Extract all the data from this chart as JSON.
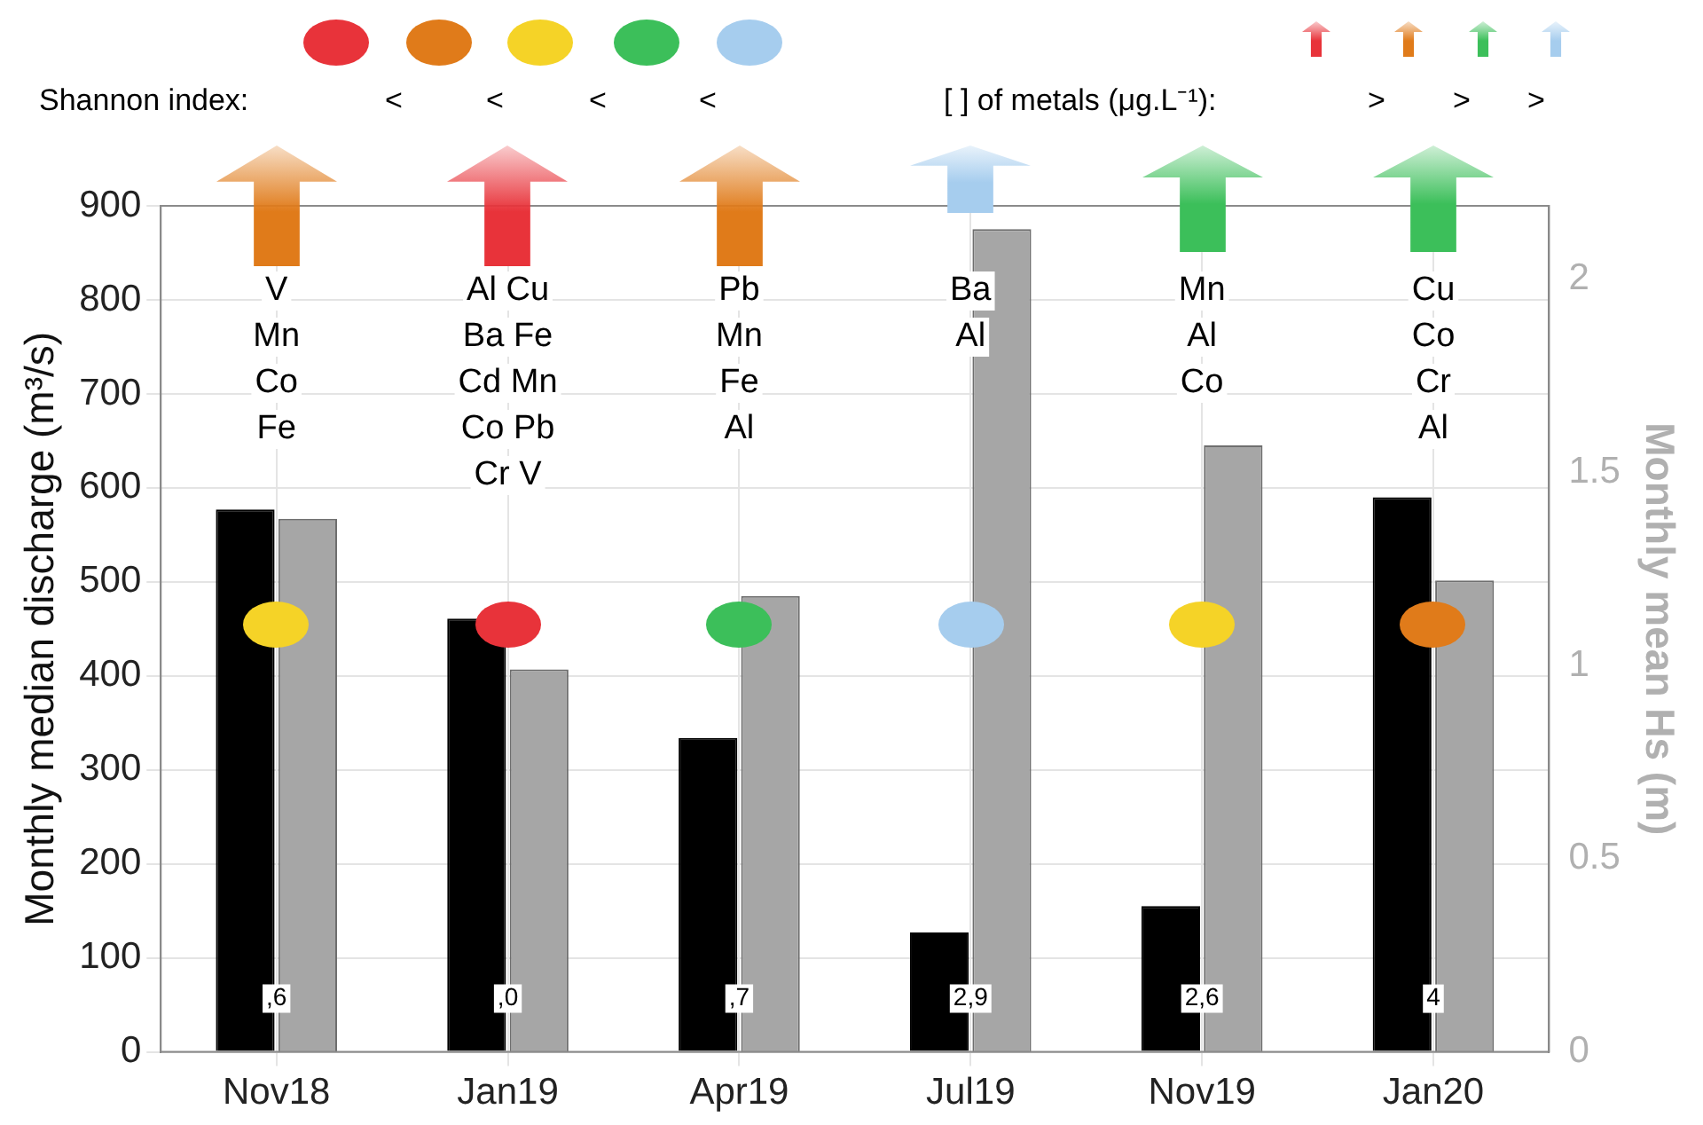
{
  "chart_data": {
    "type": "bar",
    "categories": [
      "Nov18",
      "Jan19",
      "Apr19",
      "Jul19",
      "Nov19",
      "Jan20"
    ],
    "series": [
      {
        "color": "#000000",
        "values": [
          577,
          461,
          334,
          127,
          155,
          590
        ]
      },
      {
        "color": "#a6a6a6",
        "axis": "y2",
        "values": [
          1.38,
          0.99,
          1.18,
          2.13,
          1.57,
          1.22
        ]
      }
    ],
    "ylabel": "Monthly median discharge (m³/s)",
    "y2label": "Monthly mean Hs (m)",
    "ylim": [
      0,
      900
    ],
    "yticks": [
      0,
      100,
      200,
      300,
      400,
      500,
      600,
      700,
      800,
      900
    ],
    "y2lim": [
      0,
      2.19
    ],
    "y2ticks": [
      0,
      0.5,
      1,
      1.5,
      2
    ],
    "grid": true,
    "legend": false,
    "annotations": [
      "Shannon index:",
      "<",
      "<",
      "<",
      "<",
      "[ ] of metals (μg.L⁻¹):",
      ">",
      ">",
      ">",
      "V\nMn\nCo\nFe",
      "Al Cu\nBa Fe\nCd Mn\nCo Pb\nCr V",
      "Pb\nMn\nFe\nAl",
      "Ba\nAl",
      "Mn\nAl\nCo",
      "Cu\nCo\nCr\nAl",
      ",6",
      ",0",
      ",7",
      "2,9",
      "2,6",
      "4"
    ]
  }
}
